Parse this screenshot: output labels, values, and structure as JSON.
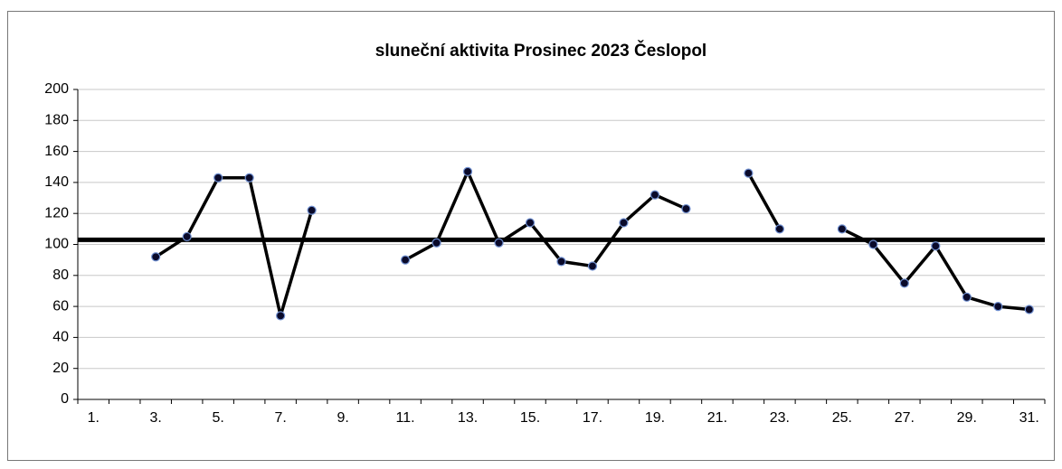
{
  "chart_data": {
    "type": "line",
    "title": "sluneční aktivita Prosinec 2023 Česlopol",
    "categories": [
      "1.",
      null,
      "3.",
      null,
      "5.",
      null,
      "7.",
      null,
      "9.",
      null,
      "11.",
      null,
      "13.",
      null,
      "15.",
      null,
      "17.",
      null,
      "19.",
      null,
      "21.",
      null,
      "23.",
      null,
      "25.",
      null,
      "27.",
      null,
      "29.",
      null,
      "31."
    ],
    "series": [
      {
        "color": "#000000",
        "marker_color": "#0a0a2a",
        "values": [
          null,
          null,
          92,
          105,
          143,
          143,
          54,
          122,
          null,
          null,
          90,
          101,
          147,
          101,
          114,
          89,
          86,
          114,
          132,
          123,
          null,
          146,
          110,
          null,
          110,
          100,
          75,
          99,
          66,
          60,
          58
        ]
      }
    ],
    "hline": 103,
    "ylim": [
      0,
      200
    ],
    "yticks": [
      0,
      20,
      40,
      60,
      80,
      100,
      120,
      140,
      160,
      180,
      200
    ],
    "grid": true
  }
}
